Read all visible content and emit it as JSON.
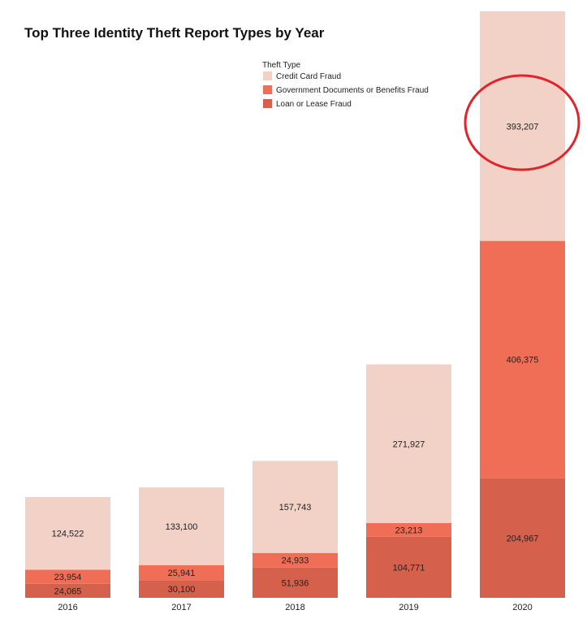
{
  "chart_data": {
    "type": "bar",
    "stacked": true,
    "title": "Top Three Identity Theft Report Types by Year",
    "xlabel": "",
    "ylabel": "",
    "categories": [
      "2016",
      "2017",
      "2018",
      "2019",
      "2020"
    ],
    "legend": {
      "title": "Theft Type",
      "placement": "top-center"
    },
    "grid": false,
    "ylim": [
      0,
      1004549
    ],
    "series": [
      {
        "name": "Loan or Lease Fraud",
        "color": "#d5604b",
        "values": [
          24065,
          30100,
          51936,
          104771,
          204967
        ],
        "labels": [
          "24,065",
          "30,100",
          "51,936",
          "104,771",
          "204,967"
        ]
      },
      {
        "name": "Government Documents or Benefits Fraud",
        "color": "#f06e55",
        "values": [
          23954,
          25941,
          24933,
          23213,
          406375
        ],
        "labels": [
          "23,954",
          "25,941",
          "24,933",
          "23,213",
          "406,375"
        ]
      },
      {
        "name": "Credit Card Fraud",
        "color": "#f2d1c6",
        "values": [
          124522,
          133100,
          157743,
          271927,
          393207
        ],
        "labels": [
          "124,522",
          "133,100",
          "157,743",
          "271,927",
          "393,207"
        ]
      }
    ],
    "legend_order": [
      "Credit Card Fraud",
      "Government Documents or Benefits Fraud",
      "Loan or Lease Fraud"
    ],
    "annotation": {
      "type": "circle",
      "color": "#e0242c",
      "target": {
        "category": "2020",
        "series": "Credit Card Fraud"
      }
    }
  }
}
